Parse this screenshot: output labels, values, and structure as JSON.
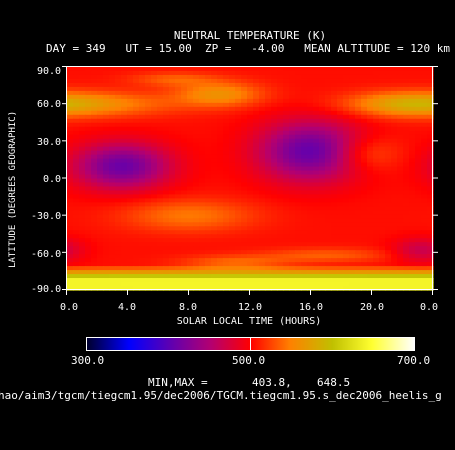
{
  "header": {
    "title": "NEUTRAL TEMPERATURE (K)",
    "subtitle": "DAY = 349   UT = 15.00  ZP =   -4.00   MEAN ALTITUDE = 120 km"
  },
  "colorbar": {
    "labels": [
      "300.0",
      "500.0",
      "700.0"
    ],
    "min_max_label": "MIN,MAX =",
    "min_value": "403.8,",
    "max_value": "648.5"
  },
  "footer": {
    "filepath": "hao/aim3/tgcm/tiegcm1.95/dec2006/TGCM.tiegcm1.95.s_dec2006_heelis_g"
  },
  "chart_data": {
    "type": "heatmap",
    "title": "NEUTRAL TEMPERATURE (K)",
    "xlabel": "SOLAR LOCAL TIME (HOURS)",
    "ylabel": "LATITUDE (DEGREES GEOGRAPHIC)",
    "xlim": [
      0,
      24
    ],
    "ylim": [
      -90,
      90
    ],
    "x_ticks": [
      "0.0",
      "4.0",
      "8.0",
      "12.0",
      "16.0",
      "20.0",
      "0.0"
    ],
    "y_ticks": [
      "90.0",
      "60.0",
      "30.0",
      "0.0",
      "-30.0",
      "-60.0",
      "-90.0"
    ],
    "colorscale_range": [
      300,
      700
    ],
    "value_min": 403.8,
    "value_max": 648.5,
    "features": [
      {
        "kind": "min",
        "local_time": 3.6,
        "latitude": 10,
        "value": 405
      },
      {
        "kind": "min",
        "local_time": 16.0,
        "latitude": 22,
        "value": 404
      },
      {
        "kind": "min",
        "local_time": 23.2,
        "latitude": -58,
        "value": 420
      },
      {
        "kind": "max",
        "local_time": 10.0,
        "latitude": 68,
        "value": 640
      },
      {
        "kind": "max",
        "local_time": 12.0,
        "latitude": -82,
        "value": 648.5
      }
    ]
  }
}
